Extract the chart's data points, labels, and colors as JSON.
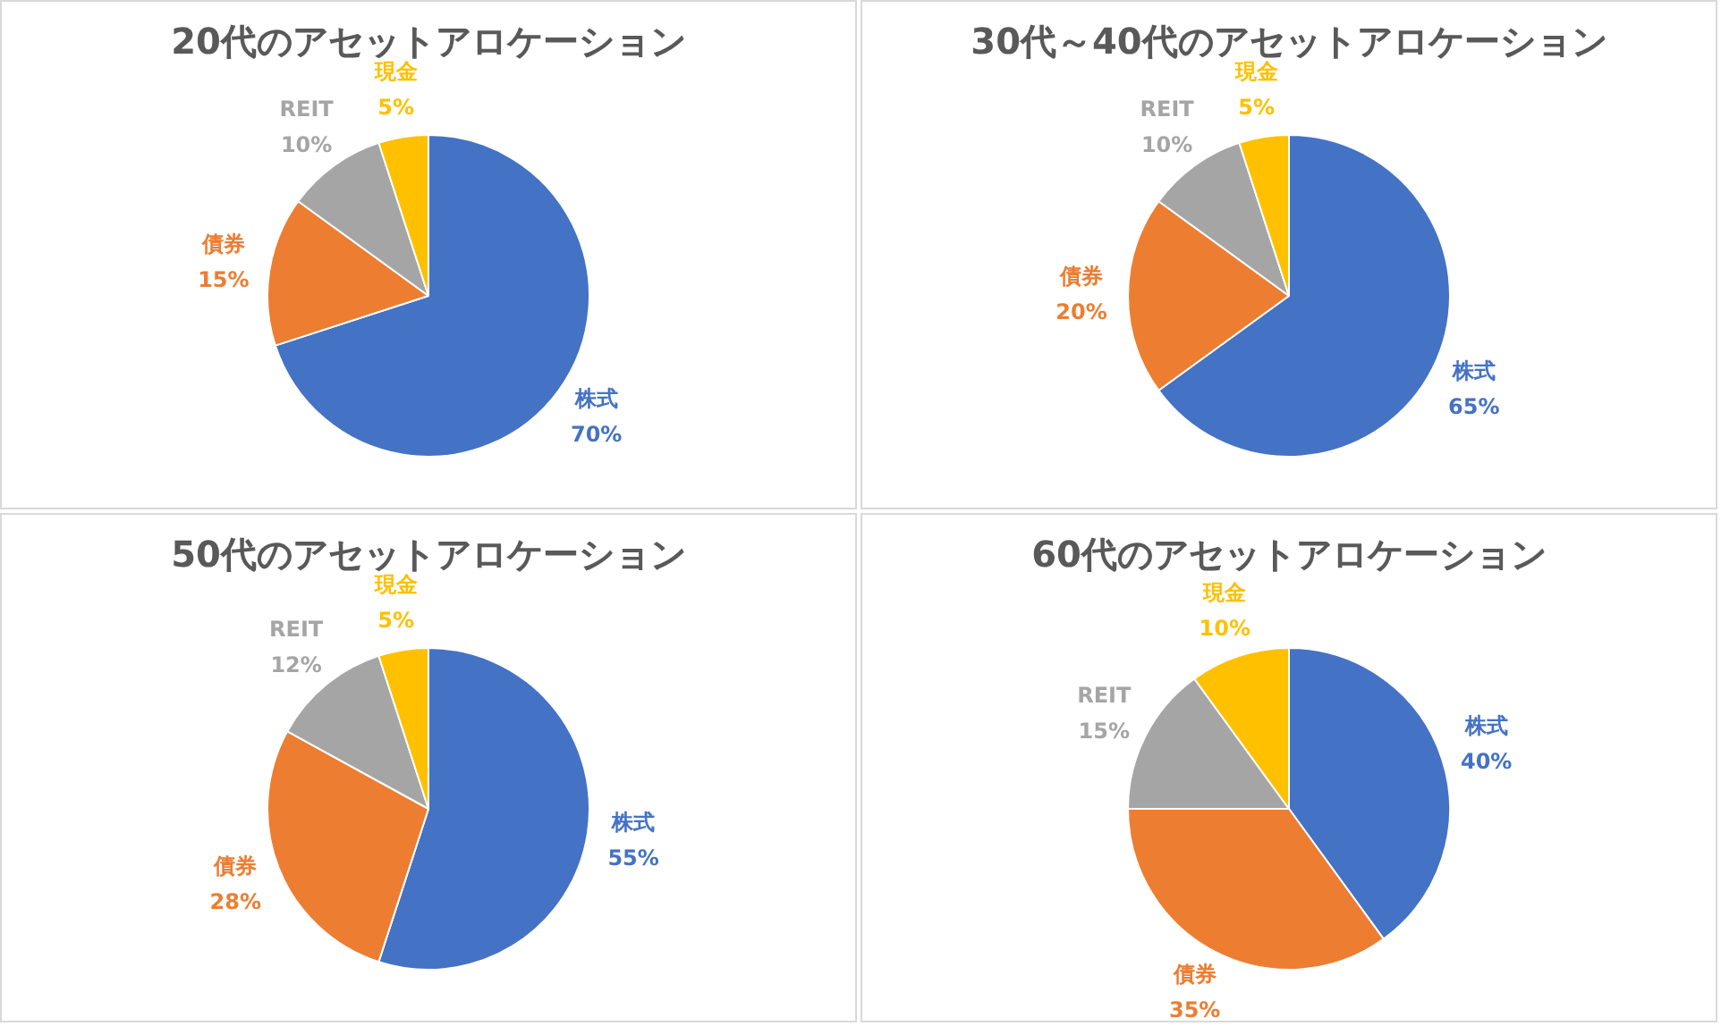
{
  "chart_data": [
    {
      "type": "pie",
      "title": "20代のアセットアロケーション",
      "categories": [
        "株式",
        "債券",
        "REIT",
        "現金"
      ],
      "values": [
        70,
        15,
        10,
        5
      ],
      "colors": [
        "#4472c4",
        "#ed7d31",
        "#a5a5a5",
        "#ffc000"
      ],
      "value_labels": [
        "70%",
        "15%",
        "10%",
        "5%"
      ]
    },
    {
      "type": "pie",
      "title": "30代～40代のアセットアロケーション",
      "categories": [
        "株式",
        "債券",
        "REIT",
        "現金"
      ],
      "values": [
        65,
        20,
        10,
        5
      ],
      "colors": [
        "#4472c4",
        "#ed7d31",
        "#a5a5a5",
        "#ffc000"
      ],
      "value_labels": [
        "65%",
        "20%",
        "10%",
        "5%"
      ]
    },
    {
      "type": "pie",
      "title": "50代のアセットアロケーション",
      "categories": [
        "株式",
        "債券",
        "REIT",
        "現金"
      ],
      "values": [
        55,
        28,
        12,
        5
      ],
      "colors": [
        "#4472c4",
        "#ed7d31",
        "#a5a5a5",
        "#ffc000"
      ],
      "value_labels": [
        "55%",
        "28%",
        "12%",
        "5%"
      ]
    },
    {
      "type": "pie",
      "title": "60代のアセットアロケーション",
      "categories": [
        "株式",
        "債券",
        "REIT",
        "現金"
      ],
      "values": [
        40,
        35,
        15,
        10
      ],
      "colors": [
        "#4472c4",
        "#ed7d31",
        "#a5a5a5",
        "#ffc000"
      ],
      "value_labels": [
        "40%",
        "35%",
        "15%",
        "10%"
      ]
    }
  ]
}
